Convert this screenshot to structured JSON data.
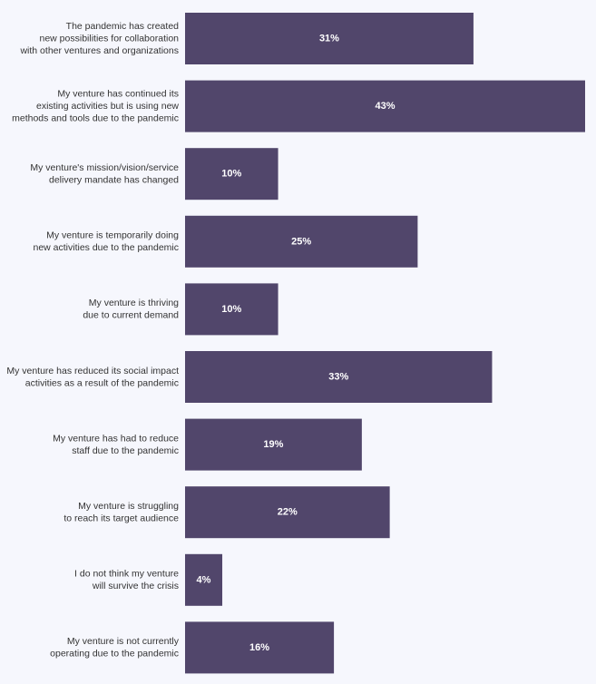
{
  "chart_data": {
    "type": "bar",
    "orientation": "horizontal",
    "categories": [
      "The pandemic has created\nnew possibilities for collaboration\nwith other ventures and organizations",
      "My venture has continued its\nexisting activities but is using new\nmethods and tools due to the pandemic",
      "My venture's mission/vision/service\ndelivery mandate has changed",
      "My venture is temporarily doing\nnew activities due to the pandemic",
      "My venture is thriving\ndue to current demand",
      "My venture has reduced its social impact\nactivities as a result of the pandemic",
      "My venture has had to reduce\nstaff due to the pandemic",
      "My venture is struggling\nto reach its target audience",
      "I do not think my venture\nwill survive the crisis",
      "My venture is not currently\noperating due to the pandemic"
    ],
    "values": [
      31,
      43,
      10,
      25,
      10,
      33,
      19,
      22,
      4,
      16
    ],
    "value_labels": [
      "31%",
      "43%",
      "10%",
      "25%",
      "10%",
      "33%",
      "19%",
      "22%",
      "4%",
      "16%"
    ],
    "unit": "%",
    "title": "",
    "xlabel": "",
    "ylabel": "",
    "xlim": [
      0,
      43
    ],
    "grid": false,
    "legend": "none",
    "colors": {
      "bar": "#51466b",
      "bar_label": "#ffffff",
      "category_label": "#333333",
      "background": "#f6f7fd"
    }
  }
}
